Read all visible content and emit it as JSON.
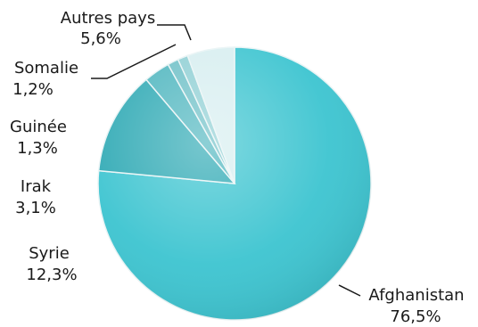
{
  "chart_data": {
    "type": "pie",
    "slices": [
      {
        "label": "Afghanistan",
        "value": 76.5,
        "value_text": "76,5%",
        "color": "#3cc4d0"
      },
      {
        "label": "Syrie",
        "value": 12.3,
        "value_text": "12,3%",
        "color": "#2ea9b4"
      },
      {
        "label": "Irak",
        "value": 3.1,
        "value_text": "3,1%",
        "color": "#4fb6bf"
      },
      {
        "label": "Guinée",
        "value": 1.3,
        "value_text": "1,3%",
        "color": "#6ec0c7"
      },
      {
        "label": "Somalie",
        "value": 1.2,
        "value_text": "1,2%",
        "color": "#8fcfd4"
      },
      {
        "label": "Autres pays",
        "value": 5.6,
        "value_text": "5,6%",
        "color": "#d7eef0"
      }
    ]
  }
}
